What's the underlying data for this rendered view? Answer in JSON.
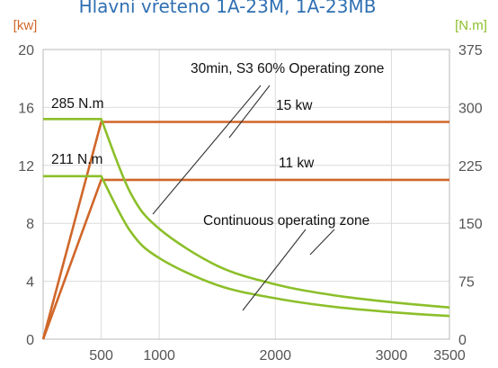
{
  "chart_data": {
    "type": "line",
    "title": "Hlavní vřeteno 1A-23M, 1A-23MB",
    "left_axis_unit": "[kw]",
    "right_axis_unit": "[N.m]",
    "x_ticks": [
      500,
      1000,
      2000,
      3000,
      3500
    ],
    "y_left_ticks": [
      0,
      4,
      8,
      12,
      16,
      20
    ],
    "y_right_ticks": [
      0,
      75,
      150,
      225,
      300,
      375
    ],
    "xlim": [
      0,
      3500
    ],
    "ylim_left": [
      0,
      20
    ],
    "ylim_right": [
      0,
      375
    ],
    "grid": true,
    "annotations": {
      "s3_zone": "30min, S3 60% Operating zone",
      "continuous_zone": "Continuous operating zone",
      "torque_high": "285 N.m",
      "torque_low": "211 N.m",
      "power_high": "15 kw",
      "power_low": "11 kw"
    },
    "series": [
      {
        "axis": "left",
        "color": "#d0672a",
        "x": [
          0,
          500,
          3500
        ],
        "values": [
          0,
          15,
          15
        ]
      },
      {
        "axis": "left",
        "color": "#d0672a",
        "x": [
          0,
          500,
          3500
        ],
        "values": [
          0,
          11,
          11
        ]
      },
      {
        "axis": "right",
        "color": "#8cbf2a",
        "x": [
          0,
          500,
          750,
          1000,
          1500,
          2000,
          2500,
          3000,
          3500
        ],
        "values": [
          285,
          285,
          190,
          143,
          95,
          71,
          57,
          48,
          41
        ]
      },
      {
        "axis": "right",
        "color": "#8cbf2a",
        "x": [
          0,
          500,
          750,
          1000,
          1500,
          2000,
          2500,
          3000,
          3500
        ],
        "values": [
          211,
          211,
          140,
          105,
          70,
          53,
          42,
          35,
          30
        ]
      }
    ]
  }
}
